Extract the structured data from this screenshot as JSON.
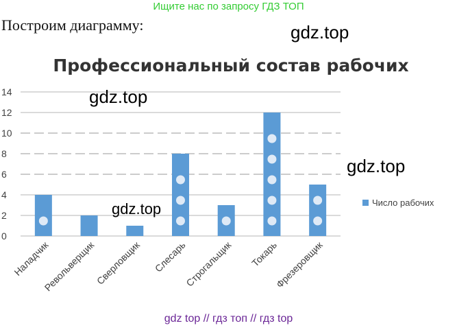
{
  "header": {
    "banner": "Ищите нас по запросу ГДЗ ТОП",
    "intro": "Построим диаграмму:"
  },
  "watermarks": {
    "w1": "gdz.top",
    "w2": "gdz.top",
    "w3": "gdz.top",
    "w4": "gdz.top"
  },
  "footer": {
    "text": "gdz top  //  гдз топ  //  гдз top"
  },
  "colors": {
    "bar": "#5b9bd5",
    "dot": "#dfeaf6",
    "grid_solid": "#b5b5b5",
    "grid_dashed": "#9a9a9a",
    "title": "#333333"
  },
  "chart_data": {
    "type": "bar",
    "title": "Профессиональный состав рабочих",
    "categories": [
      "Наладчик",
      "Револьверщик",
      "Сверловщик",
      "Слесарь",
      "Строгальщик",
      "Токарь",
      "Фрезеровщик"
    ],
    "series": [
      {
        "name": "Число рабочих",
        "values": [
          4,
          2,
          1,
          8,
          3,
          12,
          5
        ]
      }
    ],
    "ylim": [
      0,
      14
    ],
    "yticks": [
      0,
      2,
      4,
      6,
      8,
      10,
      12,
      14
    ],
    "grid": true,
    "legend": "right"
  }
}
